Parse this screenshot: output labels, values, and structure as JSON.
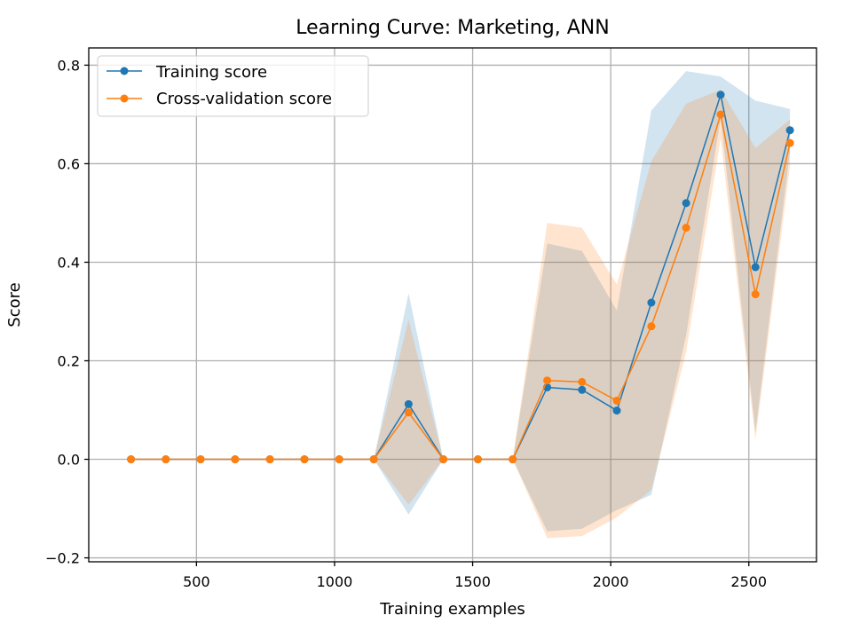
{
  "chart_data": {
    "type": "line",
    "title": "Learning Curve: Marketing, ANN",
    "xlabel": "Training examples",
    "ylabel": "Score",
    "xlim": [
      110,
      2745
    ],
    "ylim": [
      -0.208,
      0.835
    ],
    "xticks": [
      500,
      1000,
      1500,
      2000,
      2500
    ],
    "xtick_labels": [
      "500",
      "1000",
      "1500",
      "2000",
      "2500"
    ],
    "yticks": [
      -0.2,
      0.0,
      0.2,
      0.4,
      0.6,
      0.8
    ],
    "ytick_labels": [
      "−0.2",
      "0.0",
      "0.2",
      "0.4",
      "0.6",
      "0.8"
    ],
    "grid": true,
    "legend": "upper-left",
    "x": [
      263,
      389,
      515,
      640,
      766,
      891,
      1017,
      1142,
      1268,
      1394,
      1519,
      1645,
      1770,
      1896,
      2022,
      2147,
      2273,
      2398,
      2524,
      2649
    ],
    "series": [
      {
        "name": "Training score",
        "color": "#1f77b4",
        "band_color": "#1f77b4",
        "values": [
          0,
          0,
          0,
          0,
          0,
          0,
          0,
          0,
          0.112,
          0,
          0,
          0,
          0.146,
          0.141,
          0.099,
          0.318,
          0.52,
          0.74,
          0.39,
          0.668
        ],
        "lower": [
          0,
          0,
          0,
          0,
          0,
          0,
          0,
          0,
          -0.112,
          0,
          0,
          0,
          -0.146,
          -0.141,
          -0.103,
          -0.072,
          0.252,
          0.692,
          0.055,
          0.625
        ],
        "upper": [
          0,
          0,
          0,
          0,
          0,
          0,
          0,
          0,
          0.337,
          0,
          0,
          0,
          0.438,
          0.423,
          0.302,
          0.708,
          0.788,
          0.777,
          0.728,
          0.711
        ]
      },
      {
        "name": "Cross-validation score",
        "color": "#ff7f0e",
        "band_color": "#ff7f0e",
        "values": [
          0,
          0,
          0,
          0,
          0,
          0,
          0,
          0,
          0.095,
          0,
          0,
          0,
          0.16,
          0.157,
          0.119,
          0.27,
          0.47,
          0.7,
          0.335,
          0.642
        ],
        "lower": [
          0,
          0,
          0,
          0,
          0,
          0,
          0,
          0,
          -0.092,
          0,
          0,
          0,
          -0.16,
          -0.156,
          -0.118,
          -0.062,
          0.218,
          0.651,
          0.04,
          0.595
        ],
        "upper": [
          0,
          0,
          0,
          0,
          0,
          0,
          0,
          0,
          0.283,
          0,
          0,
          0,
          0.48,
          0.47,
          0.355,
          0.605,
          0.722,
          0.75,
          0.632,
          0.69
        ]
      }
    ]
  }
}
